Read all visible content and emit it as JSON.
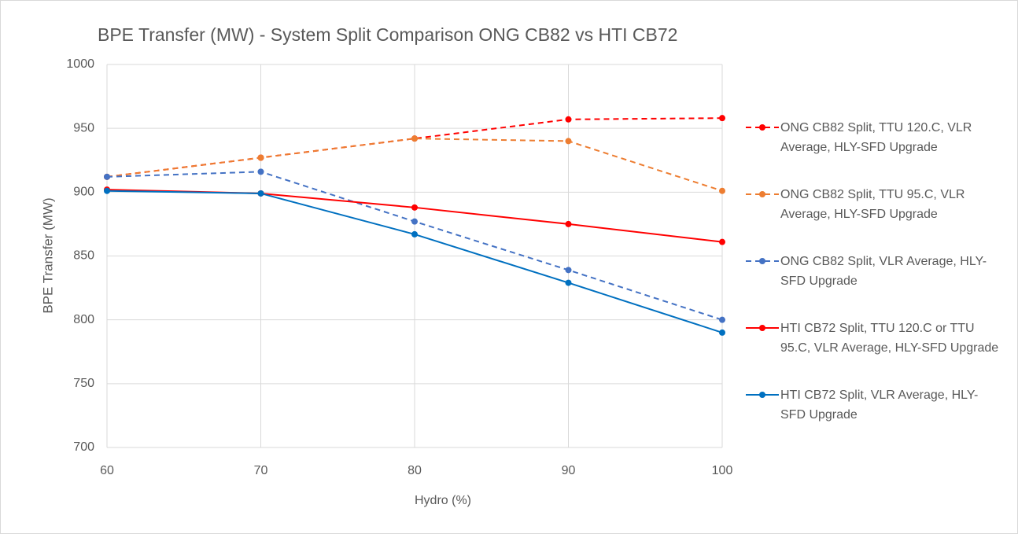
{
  "chart_data": {
    "type": "line",
    "title": "BPE Transfer (MW) - System Split Comparison ONG CB82 vs HTI CB72",
    "x_label": "Hydro (%)",
    "y_label": "BPE Transfer (MW)",
    "x": [
      60,
      70,
      80,
      90,
      100
    ],
    "xlim": [
      60,
      100
    ],
    "xticks": [
      60,
      70,
      80,
      90,
      100
    ],
    "ylim": [
      700,
      1000
    ],
    "yticks": [
      700,
      750,
      800,
      850,
      900,
      950,
      1000
    ],
    "grid": true,
    "legend": "right",
    "series": [
      {
        "name": "ONG CB82 Split, TTU 120.C, VLR Average, HLY-SFD Upgrade",
        "color": "#ff0000",
        "style": "dashed",
        "values": [
          912,
          927,
          942,
          957,
          958
        ]
      },
      {
        "name": "ONG CB82 Split, TTU 95.C, VLR Average, HLY-SFD Upgrade",
        "color": "#ed7d31",
        "style": "dashed",
        "values": [
          912,
          927,
          942,
          940,
          901
        ]
      },
      {
        "name": "ONG CB82 Split, VLR Average, HLY-SFD Upgrade",
        "color": "#4472c4",
        "style": "dashed",
        "values": [
          912,
          916,
          877,
          839,
          800
        ]
      },
      {
        "name": "HTI CB72 Split, TTU 120.C or TTU 95.C, VLR Average, HLY-SFD Upgrade",
        "color": "#ff0000",
        "style": "solid",
        "values": [
          902,
          899,
          888,
          875,
          861
        ]
      },
      {
        "name": "HTI CB72 Split, VLR Average, HLY-SFD Upgrade",
        "color": "#0070c0",
        "style": "solid",
        "values": [
          901,
          899,
          867,
          829,
          790
        ]
      }
    ]
  }
}
